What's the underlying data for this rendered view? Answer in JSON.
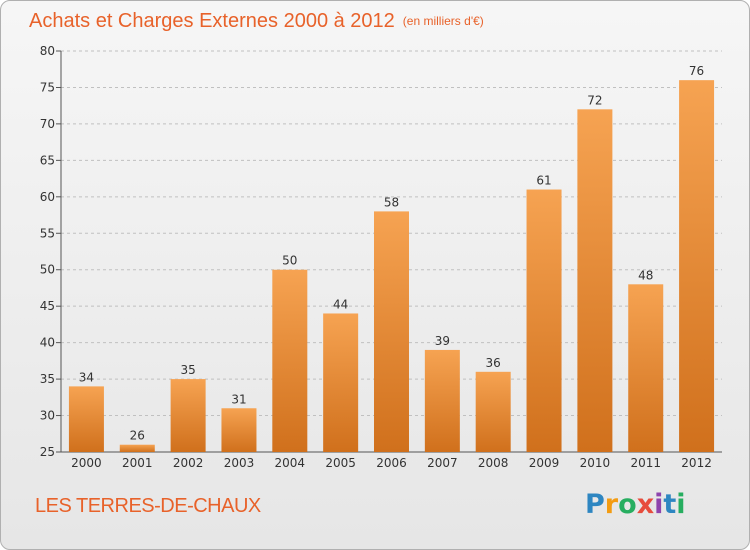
{
  "title": "Achats et Charges Externes 2000 à 2012",
  "subtitle": "(en milliers d'€)",
  "commune": "LES TERRES-DE-CHAUX",
  "brand": {
    "letters": [
      "P",
      "r",
      "o",
      "x",
      "i",
      "t",
      "i"
    ],
    "colors": [
      "#2e86c1",
      "#f39c12",
      "#27ae60",
      "#e74c3c",
      "#8e44ad",
      "#2e86c1",
      "#27ae60"
    ]
  },
  "colors": {
    "accent": "#e8622a",
    "bar_top": "#f6a352",
    "bar_bottom": "#d0701c",
    "grid": "#c0c0c0",
    "axis": "#555555"
  },
  "chart_data": {
    "type": "bar",
    "categories": [
      "2000",
      "2001",
      "2002",
      "2003",
      "2004",
      "2005",
      "2006",
      "2007",
      "2008",
      "2009",
      "2010",
      "2011",
      "2012"
    ],
    "values": [
      34,
      26,
      35,
      31,
      50,
      44,
      58,
      39,
      36,
      61,
      72,
      48,
      76
    ],
    "title": "Achats et Charges Externes 2000 à 2012",
    "subtitle": "(en milliers d'€)",
    "xlabel": "",
    "ylabel": "",
    "ylim": [
      25,
      80
    ],
    "yticks": [
      25,
      30,
      35,
      40,
      45,
      50,
      55,
      60,
      65,
      70,
      75,
      80
    ],
    "grid": true,
    "legend": "none"
  }
}
